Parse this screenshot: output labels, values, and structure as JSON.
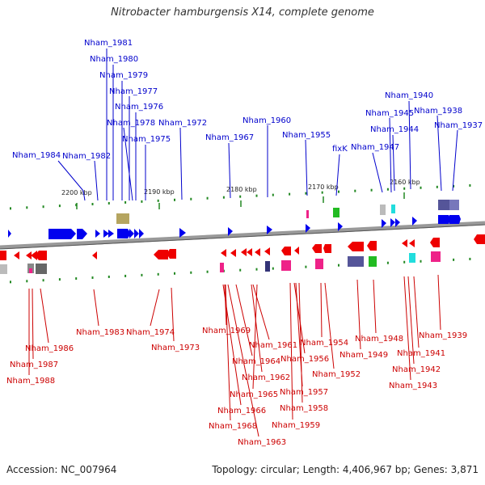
{
  "title": "Nitrobacter hamburgensis X14, complete genome",
  "footer": {
    "accession": "Accession: NC_007964",
    "info": "Topology: circular; Length: 4,406,967 bp; Genes: 3,871"
  },
  "ticks": [
    "2200 kbp",
    "2190 kbp",
    "2180 kbp",
    "2170 kbp",
    "2160 kbp"
  ],
  "top_labels": [
    {
      "text": "Nham_1981"
    },
    {
      "text": "Nham_1980"
    },
    {
      "text": "Nham_1979"
    },
    {
      "text": "Nham_1977"
    },
    {
      "text": "Nham_1976"
    },
    {
      "text": "Nham_1978"
    },
    {
      "text": "Nham_1972"
    },
    {
      "text": "Nham_1975"
    },
    {
      "text": "Nham_1984"
    },
    {
      "text": "Nham_1982"
    },
    {
      "text": "Nham_1960"
    },
    {
      "text": "Nham_1967"
    },
    {
      "text": "Nham_1955"
    },
    {
      "text": "fixK"
    },
    {
      "text": "Nham_1940"
    },
    {
      "text": "Nham_1945"
    },
    {
      "text": "Nham_1938"
    },
    {
      "text": "Nham_1944"
    },
    {
      "text": "Nham_1937"
    },
    {
      "text": "Nham_1947"
    }
  ],
  "bottom_labels": [
    {
      "text": "Nham_1983"
    },
    {
      "text": "Nham_1974"
    },
    {
      "text": "Nham_1973"
    },
    {
      "text": "Nham_1986"
    },
    {
      "text": "Nham_1987"
    },
    {
      "text": "Nham_1988"
    },
    {
      "text": "Nham_1969"
    },
    {
      "text": "Nham_1961"
    },
    {
      "text": "Nham_1964"
    },
    {
      "text": "Nham_1962"
    },
    {
      "text": "Nham_1965"
    },
    {
      "text": "Nham_1966"
    },
    {
      "text": "Nham_1968"
    },
    {
      "text": "Nham_1963"
    },
    {
      "text": "Nham_1954"
    },
    {
      "text": "Nham_1956"
    },
    {
      "text": "Nham_1952"
    },
    {
      "text": "Nham_1957"
    },
    {
      "text": "Nham_1958"
    },
    {
      "text": "Nham_1959"
    },
    {
      "text": "Nham_1948"
    },
    {
      "text": "Nham_1949"
    },
    {
      "text": "Nham_1939"
    },
    {
      "text": "Nham_1941"
    },
    {
      "text": "Nham_1942"
    },
    {
      "text": "Nham_1943"
    }
  ],
  "colors": {
    "forward": "#0000ee",
    "reverse": "#ee0000",
    "backbone": "#888888",
    "tick": "#228822"
  }
}
